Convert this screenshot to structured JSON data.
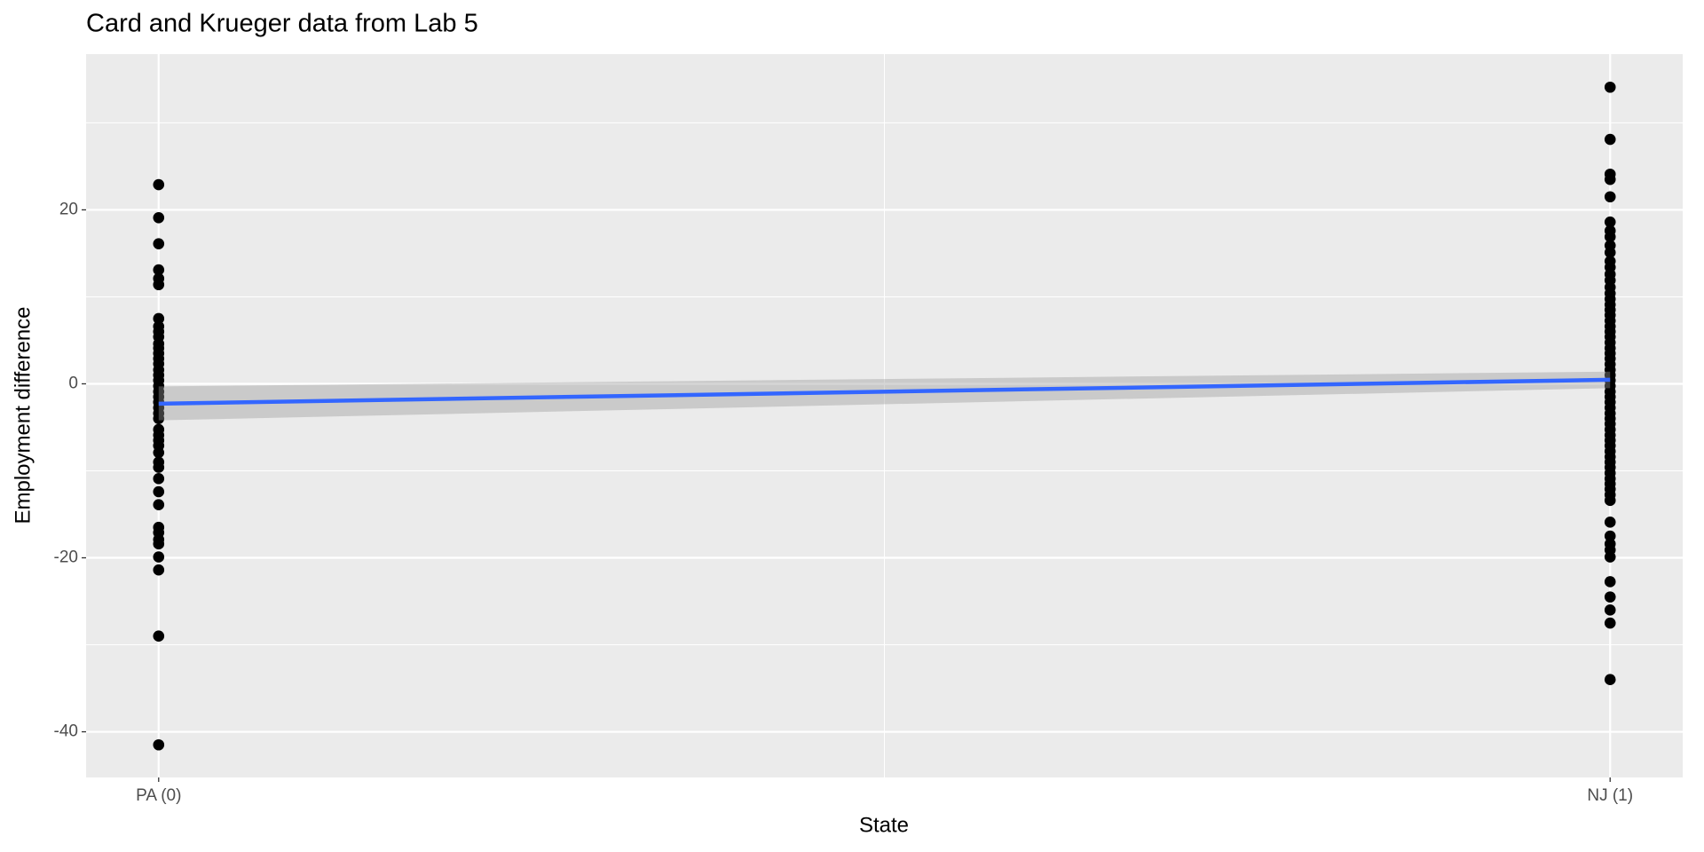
{
  "chart_data": {
    "type": "scatter",
    "title": "Card and Krueger data from Lab 5",
    "x_label": "State",
    "y_label": "Employment difference",
    "xlim": [
      -0.05,
      1.05
    ],
    "ylim": [
      -45.25,
      37.9
    ],
    "xticks": [
      {
        "value": 0,
        "label": "PA (0)"
      },
      {
        "value": 1,
        "label": "NJ (1)"
      }
    ],
    "yticks": [
      -40,
      -20,
      0,
      20
    ],
    "grid": true,
    "color": "#000000",
    "x": [
      0,
      0,
      0,
      0,
      0,
      0,
      0,
      0,
      0,
      0,
      0,
      0,
      0,
      0,
      0,
      0,
      0,
      0,
      0,
      0,
      0,
      0,
      0,
      0,
      0,
      0,
      0,
      0,
      0,
      0,
      0,
      0,
      0,
      0,
      0,
      0,
      0,
      0,
      0,
      0,
      0,
      0,
      0,
      1,
      1,
      1,
      1,
      1,
      1,
      1,
      1,
      1,
      1,
      1,
      1,
      1,
      1,
      1,
      1,
      1,
      1,
      1,
      1,
      1,
      1,
      1,
      1,
      1,
      1,
      1,
      1,
      1,
      1,
      1,
      1,
      1,
      1,
      1,
      1,
      1,
      1,
      1,
      1,
      1,
      1,
      1,
      1,
      1,
      1,
      1,
      1,
      1,
      1,
      1,
      1,
      1,
      1,
      1,
      1,
      1,
      1,
      1,
      1,
      1,
      1,
      1,
      1
    ],
    "values": [
      22.9,
      19.1,
      16.1,
      13.1,
      12.1,
      11.4,
      7.5,
      6.6,
      6,
      5.4,
      4.6,
      4.1,
      3.5,
      2.9,
      2.3,
      1.6,
      1,
      0.4,
      -0.25,
      -0.9,
      -1.5,
      -2.1,
      -2.75,
      -3.4,
      -4,
      -5.25,
      -5.9,
      -6.5,
      -7.1,
      -7.9,
      -9,
      -9.6,
      -10.9,
      -12.4,
      -13.9,
      -16.5,
      -17.1,
      -17.9,
      -18.4,
      -19.9,
      -21.4,
      -29,
      -41.5,
      34.1,
      28.1,
      24.1,
      23.5,
      21.5,
      18.6,
      17.6,
      16.9,
      15.9,
      15.1,
      14.1,
      13.4,
      12.6,
      11.9,
      11.1,
      10.4,
      9.75,
      9.1,
      8.5,
      7.9,
      7.25,
      6.6,
      6,
      5.4,
      4.75,
      4.1,
      3.5,
      2.9,
      2.25,
      1.6,
      1,
      0.4,
      -0.25,
      -0.9,
      -1.5,
      -2.1,
      -2.75,
      -3.4,
      -4,
      -4.6,
      -5.25,
      -5.9,
      -6.5,
      -7.1,
      -7.75,
      -8.4,
      -9,
      -9.6,
      -10.25,
      -10.9,
      -11.5,
      -12.1,
      -12.75,
      -13.4,
      -15.9,
      -17.5,
      -18.4,
      -19.1,
      -19.9,
      -22.75,
      -24.5,
      -26,
      -27.5,
      -34
    ],
    "fit": {
      "x": [
        0,
        1
      ],
      "y": [
        -2.28,
        0.47
      ],
      "lower": [
        -4.2,
        -0.5
      ],
      "upper": [
        -0.3,
        1.4
      ],
      "color": "#3366ff",
      "band_color": "#999999"
    }
  }
}
